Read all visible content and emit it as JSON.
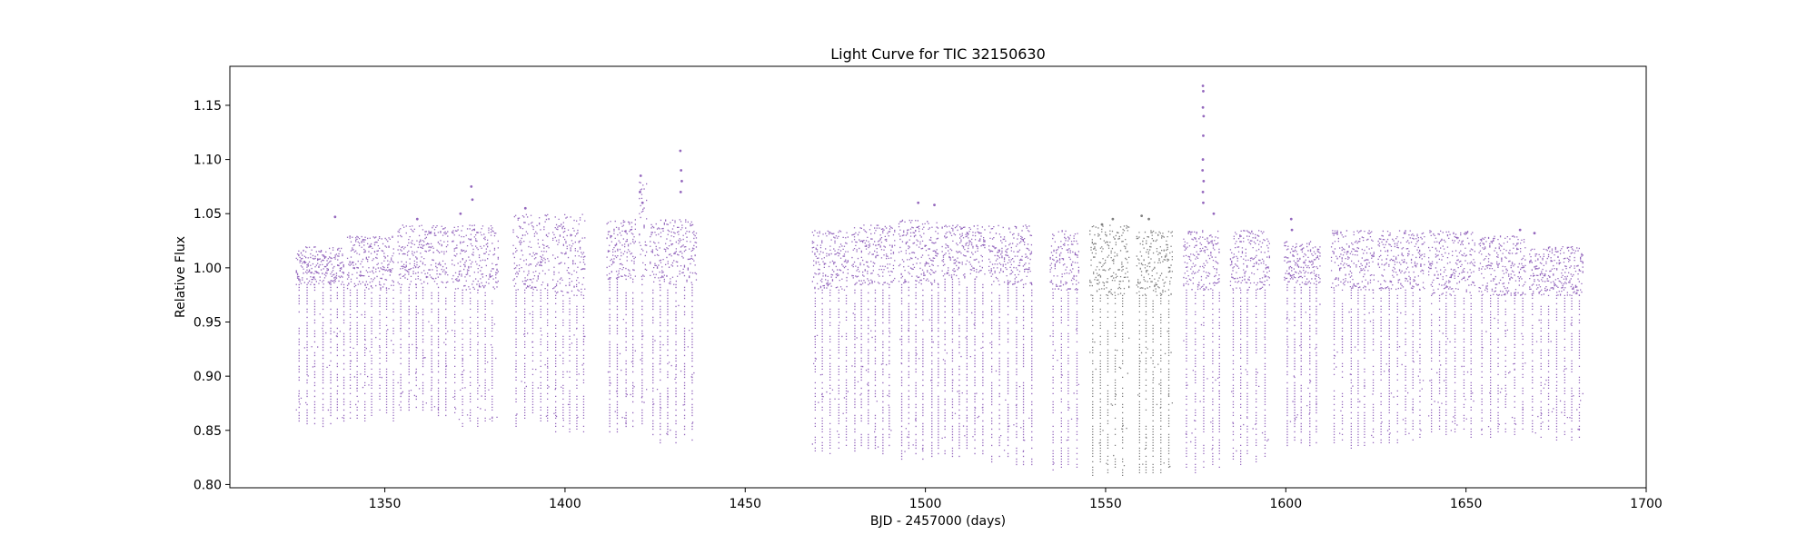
{
  "chart_data": {
    "type": "scatter",
    "title": "Light Curve for TIC 32150630",
    "xlabel": "BJD - 2457000 (days)",
    "ylabel": "Relative Flux",
    "xlim": [
      1307,
      1700
    ],
    "ylim": [
      0.797,
      1.186
    ],
    "xticks": [
      1350,
      1400,
      1450,
      1500,
      1550,
      1600,
      1650,
      1700
    ],
    "yticks": [
      0.8,
      0.85,
      0.9,
      0.95,
      1.0,
      1.05,
      1.1,
      1.15
    ],
    "xtick_labels": [
      "1350",
      "1400",
      "1450",
      "1500",
      "1550",
      "1600",
      "1650",
      "1700"
    ],
    "ytick_labels": [
      "0.80",
      "0.85",
      "0.90",
      "0.95",
      "1.00",
      "1.05",
      "1.10",
      "1.15"
    ],
    "grid": false,
    "legend": "none",
    "colors": {
      "main": "#9467bd",
      "secondary": "#7f7f7f"
    },
    "series": [
      {
        "color": "#9467bd",
        "segments": [
          {
            "x": [
              1325.3,
              1338.5
            ],
            "core": [
              0.985,
              1.02
            ],
            "dips": [
              0.86,
              0.96
            ]
          },
          {
            "x": [
              1339.5,
              1352.5
            ],
            "core": [
              0.98,
              1.03
            ],
            "dips": [
              0.865,
              0.96
            ]
          },
          {
            "x": [
              1353.5,
              1367.5
            ],
            "core": [
              0.985,
              1.04
            ],
            "dips": [
              0.87,
              0.96
            ]
          },
          {
            "x": [
              1368.5,
              1381.5
            ],
            "core": [
              0.98,
              1.04
            ],
            "dips": [
              0.86,
              0.96
            ]
          },
          {
            "x": [
              1385.5,
              1395.5
            ],
            "core": [
              0.98,
              1.05
            ],
            "dips": [
              0.86,
              0.96
            ]
          },
          {
            "x": [
              1396.5,
              1405.5
            ],
            "core": [
              0.975,
              1.05
            ],
            "dips": [
              0.855,
              0.95
            ]
          },
          {
            "x": [
              1411.5,
              1419.5
            ],
            "core": [
              0.99,
              1.045
            ],
            "dips": [
              0.855,
              0.965
            ]
          },
          {
            "x": [
              1420.5,
              1422.5
            ],
            "core": [
              0.99,
              1.08
            ],
            "dips": [
              0.86,
              0.97
            ]
          },
          {
            "x": [
              1423.5,
              1436.5
            ],
            "core": [
              0.985,
              1.045
            ],
            "dips": [
              0.845,
              0.97
            ]
          },
          {
            "x": [
              1468.5,
              1478.5
            ],
            "core": [
              0.98,
              1.035
            ],
            "dips": [
              0.835,
              0.96
            ]
          },
          {
            "x": [
              1479.5,
              1491.5
            ],
            "core": [
              0.985,
              1.04
            ],
            "dips": [
              0.835,
              0.96
            ]
          },
          {
            "x": [
              1492.5,
              1503.5
            ],
            "core": [
              0.985,
              1.045
            ],
            "dips": [
              0.83,
              0.96
            ]
          },
          {
            "x": [
              1504.5,
              1516.5
            ],
            "core": [
              0.99,
              1.04
            ],
            "dips": [
              0.83,
              0.965
            ]
          },
          {
            "x": [
              1517.5,
              1529.5
            ],
            "core": [
              0.985,
              1.04
            ],
            "dips": [
              0.825,
              0.96
            ]
          },
          {
            "x": [
              1534.5,
              1542.5
            ],
            "core": [
              0.98,
              1.035
            ],
            "dips": [
              0.818,
              0.96
            ]
          },
          {
            "x": [
              1571.5,
              1581.5
            ],
            "core": [
              0.98,
              1.035
            ],
            "dips": [
              0.818,
              0.96
            ]
          },
          {
            "x": [
              1584.5,
              1595.5
            ],
            "core": [
              0.98,
              1.035
            ],
            "dips": [
              0.825,
              0.965
            ]
          },
          {
            "x": [
              1599.5,
              1609.5
            ],
            "core": [
              0.985,
              1.025
            ],
            "dips": [
              0.84,
              0.97
            ]
          },
          {
            "x": [
              1612.5,
              1624.5
            ],
            "core": [
              0.98,
              1.035
            ],
            "dips": [
              0.84,
              0.96
            ]
          },
          {
            "x": [
              1625.5,
              1638.5
            ],
            "core": [
              0.98,
              1.035
            ],
            "dips": [
              0.845,
              0.96
            ]
          },
          {
            "x": [
              1639.5,
              1652.5
            ],
            "core": [
              0.975,
              1.035
            ],
            "dips": [
              0.85,
              0.955
            ]
          },
          {
            "x": [
              1653.5,
              1666.5
            ],
            "core": [
              0.975,
              1.03
            ],
            "dips": [
              0.85,
              0.955
            ]
          },
          {
            "x": [
              1667.5,
              1682.5
            ],
            "core": [
              0.975,
              1.02
            ],
            "dips": [
              0.845,
              0.955
            ]
          }
        ],
        "outliers": [
          [
            1336.2,
            1.047
          ],
          [
            1359.0,
            1.045
          ],
          [
            1374.0,
            1.075
          ],
          [
            1374.3,
            1.063
          ],
          [
            1371.0,
            1.05
          ],
          [
            1389.0,
            1.055
          ],
          [
            1421.0,
            1.085
          ],
          [
            1420.8,
            1.07
          ],
          [
            1421.5,
            1.06
          ],
          [
            1432.0,
            1.108
          ],
          [
            1432.2,
            1.09
          ],
          [
            1432.4,
            1.08
          ],
          [
            1432.1,
            1.07
          ],
          [
            1498.0,
            1.06
          ],
          [
            1502.5,
            1.058
          ],
          [
            1577.0,
            1.168
          ],
          [
            1577.1,
            1.163
          ],
          [
            1577.0,
            1.148
          ],
          [
            1577.2,
            1.14
          ],
          [
            1577.1,
            1.122
          ],
          [
            1577.0,
            1.1
          ],
          [
            1576.9,
            1.09
          ],
          [
            1577.2,
            1.08
          ],
          [
            1577.0,
            1.07
          ],
          [
            1577.1,
            1.06
          ],
          [
            1580.0,
            1.05
          ],
          [
            1601.5,
            1.045
          ],
          [
            1601.7,
            1.035
          ],
          [
            1665.0,
            1.035
          ],
          [
            1669.0,
            1.032
          ]
        ]
      },
      {
        "color": "#7f7f7f",
        "segments": [
          {
            "x": [
              1545.5,
              1556.5
            ],
            "core": [
              0.975,
              1.04
            ],
            "dips": [
              0.815,
              0.955
            ]
          },
          {
            "x": [
              1558.5,
              1568.5
            ],
            "core": [
              0.975,
              1.035
            ],
            "dips": [
              0.815,
              0.955
            ]
          }
        ],
        "outliers": [
          [
            1552.0,
            1.045
          ],
          [
            1560.0,
            1.048
          ],
          [
            1562.0,
            1.045
          ],
          [
            1549.0,
            1.04
          ]
        ]
      }
    ]
  }
}
